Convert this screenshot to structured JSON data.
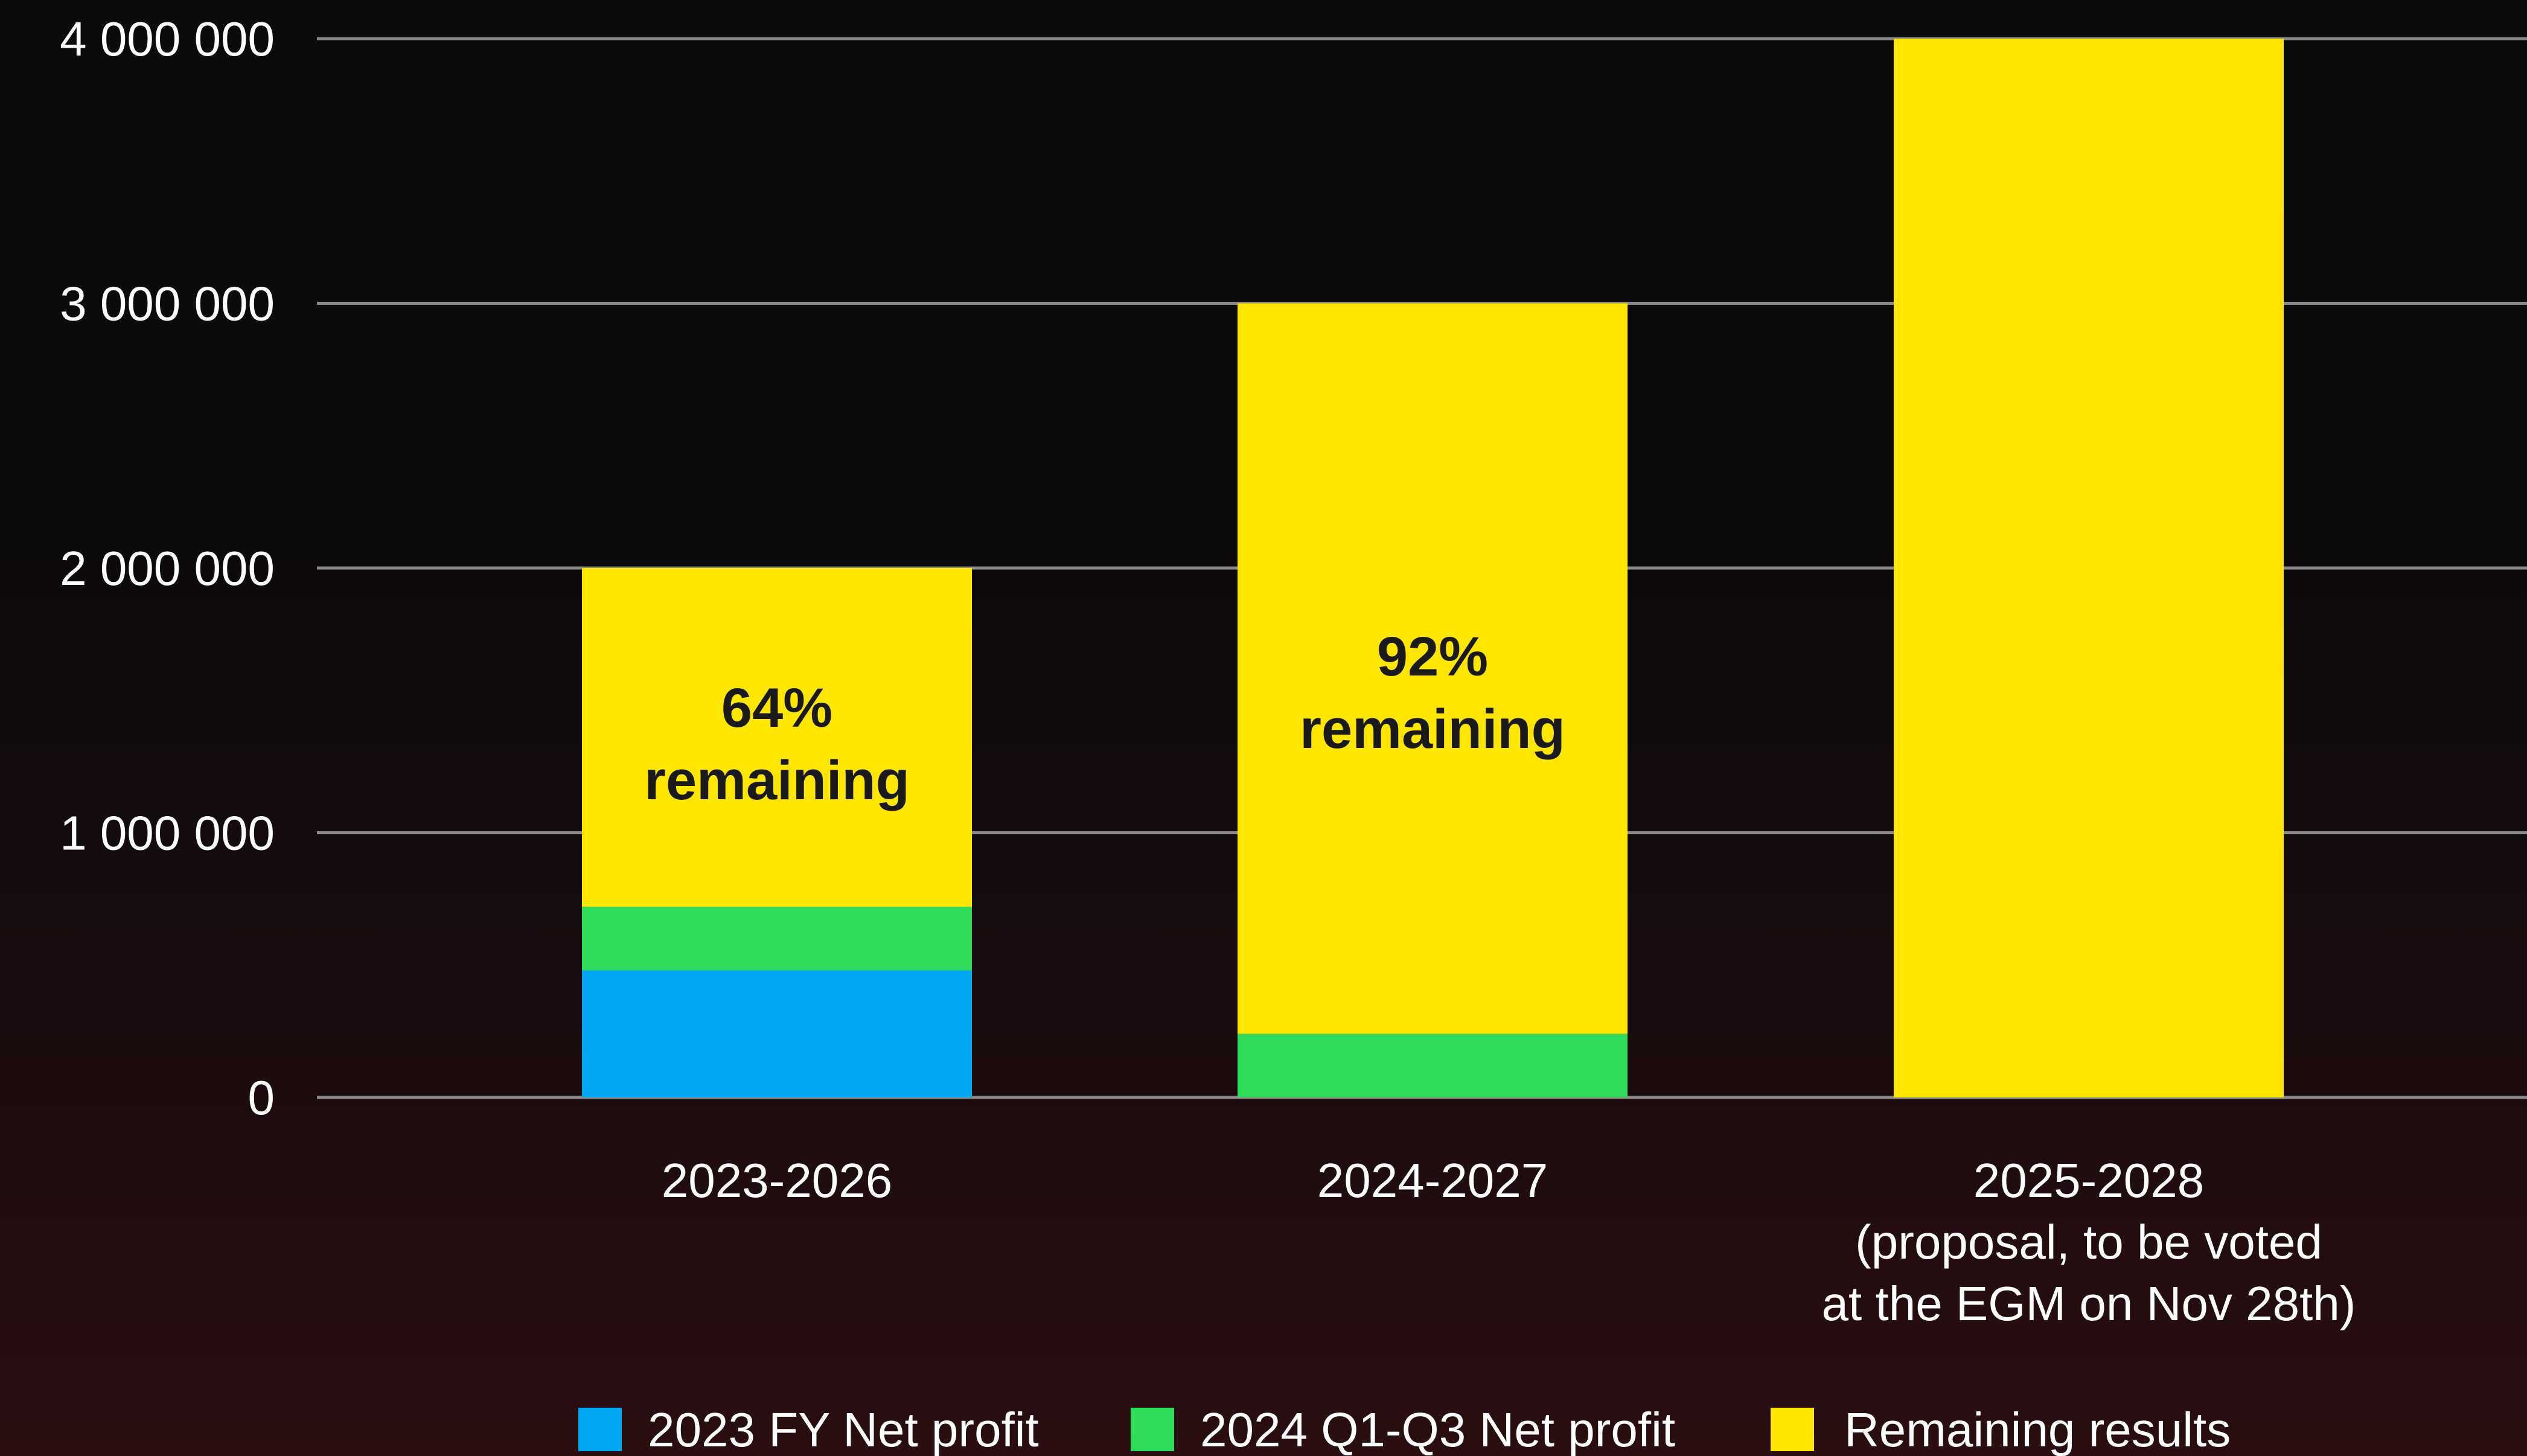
{
  "chart_data": {
    "type": "bar",
    "stacked": true,
    "categories": [
      [
        "2023-2026"
      ],
      [
        "2024-2027"
      ],
      [
        "2025-2028",
        "(proposal, to be voted",
        "at the EGM on Nov 28th)"
      ]
    ],
    "series": [
      {
        "name": "2023 FY Net profit",
        "color": "#00a8f3",
        "values": [
          480000,
          0,
          0
        ]
      },
      {
        "name": "2024 Q1-Q3 Net profit",
        "color": "#2fdc5a",
        "values": [
          240000,
          240000,
          0
        ]
      },
      {
        "name": "Remaining results",
        "color": "#ffe600",
        "values": [
          1280000,
          2760000,
          4000000
        ]
      }
    ],
    "annotations": [
      {
        "category_index": 0,
        "lines": [
          "64%",
          "remaining"
        ]
      },
      {
        "category_index": 1,
        "lines": [
          "92%",
          "remaining"
        ]
      }
    ],
    "yticks": [
      0,
      1000000,
      2000000,
      3000000,
      4000000
    ],
    "ytick_labels": [
      "0",
      "1 000 000",
      "2 000 000",
      "3 000 000",
      "4 000 000"
    ],
    "ylim": [
      0,
      4000000
    ],
    "grid": true,
    "legend_position": "bottom",
    "title": "",
    "xlabel": "",
    "ylabel": ""
  }
}
